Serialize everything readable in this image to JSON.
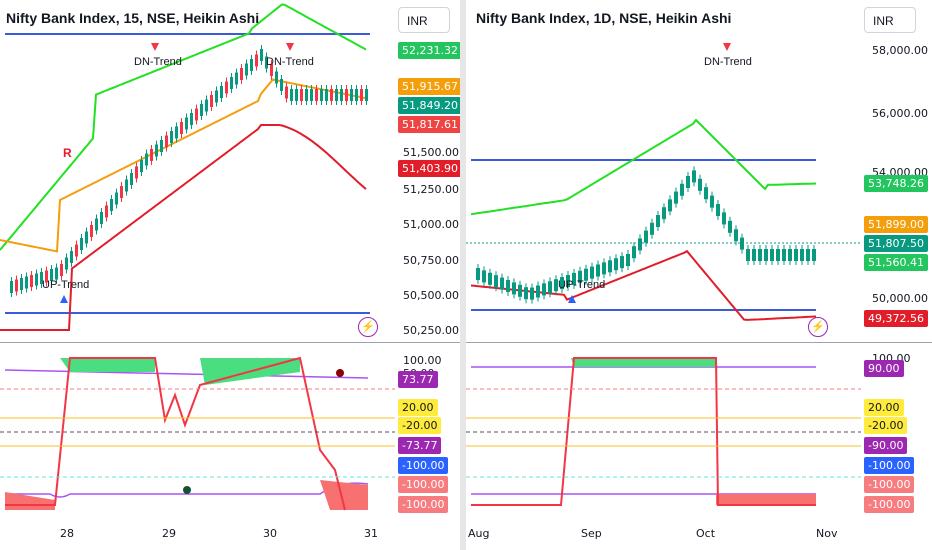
{
  "left": {
    "title": "Nifty Bank Index, 15, NSE, Heikin Ashi",
    "currency": "INR",
    "price_ticks": [
      "51,500.00",
      "51,250.00",
      "51,000.00",
      "50,750.00",
      "50,500.00",
      "50,250.00"
    ],
    "price_badges": [
      {
        "text": "52,231.32",
        "bg": "#22c55e",
        "fg": "#ffffff"
      },
      {
        "text": "51,915.67",
        "bg": "#f59e0b",
        "fg": "#ffffff"
      },
      {
        "text": "51,849.20",
        "bg": "#089981",
        "fg": "#ffffff"
      },
      {
        "text": "51,817.61",
        "bg": "#ef4444",
        "fg": "#ffffff"
      },
      {
        "text": "51,403.90",
        "bg": "#e11d2a",
        "fg": "#ffffff"
      }
    ],
    "osc_ticks": [
      "100.00",
      "50.00"
    ],
    "osc_badges": [
      {
        "text": "73.77",
        "bg": "#9c27b0",
        "fg": "#ffffff"
      },
      {
        "text": "20.00",
        "bg": "#ffeb3b",
        "fg": "#131722"
      },
      {
        "text": "-20.00",
        "bg": "#ffeb3b",
        "fg": "#131722"
      },
      {
        "text": "-73.77",
        "bg": "#9c27b0",
        "fg": "#ffffff"
      },
      {
        "text": "-100.00",
        "bg": "#2962ff",
        "fg": "#ffffff"
      },
      {
        "text": "-100.00",
        "bg": "#f77c80",
        "fg": "#ffffff"
      },
      {
        "text": "-100.00",
        "bg": "#f77c80",
        "fg": "#ffffff"
      }
    ],
    "time_ticks": [
      "28",
      "29",
      "30",
      "31"
    ],
    "annotations": {
      "dn_trend": "DN-Trend",
      "dn_trend_2": "DN-Trend",
      "up_trend": "UP-Trend",
      "alert_letter": "R"
    }
  },
  "right": {
    "title": "Nifty Bank Index, 1D, NSE, Heikin Ashi",
    "currency": "INR",
    "price_ticks": [
      "58,000.00",
      "56,000.00",
      "54,000.00",
      "50,000.00"
    ],
    "price_badges": [
      {
        "text": "53,748.26",
        "bg": "#22c55e",
        "fg": "#ffffff"
      },
      {
        "text": "51,899.00",
        "bg": "#f59e0b",
        "fg": "#ffffff"
      },
      {
        "text": "51,807.50",
        "bg": "#089981",
        "fg": "#ffffff"
      },
      {
        "text": "51,560.41",
        "bg": "#22c55e",
        "fg": "#ffffff"
      },
      {
        "text": "49,372.56",
        "bg": "#e11d2a",
        "fg": "#ffffff"
      }
    ],
    "osc_ticks": [
      "100.00"
    ],
    "osc_badges": [
      {
        "text": "90.00",
        "bg": "#9c27b0",
        "fg": "#ffffff"
      },
      {
        "text": "20.00",
        "bg": "#ffeb3b",
        "fg": "#131722"
      },
      {
        "text": "-20.00",
        "bg": "#ffeb3b",
        "fg": "#131722"
      },
      {
        "text": "-90.00",
        "bg": "#9c27b0",
        "fg": "#ffffff"
      },
      {
        "text": "-100.00",
        "bg": "#2962ff",
        "fg": "#ffffff"
      },
      {
        "text": "-100.00",
        "bg": "#f77c80",
        "fg": "#ffffff"
      },
      {
        "text": "-100.00",
        "bg": "#f77c80",
        "fg": "#ffffff"
      }
    ],
    "time_ticks": [
      "Aug",
      "Sep",
      "Oct",
      "Nov"
    ],
    "annotations": {
      "dn_trend": "DN-Trend",
      "up_trend": "UP-Trend"
    }
  },
  "colors": {
    "band_upper": "#22e022",
    "band_lower": "#e11d2a",
    "mid": "#f59e0b",
    "hline": "#3b5bdb",
    "up": "#089981",
    "down": "#f23645",
    "osc_fill": "#4ade80",
    "osc_fill_neg": "#f87171",
    "envelope": "#a855f7"
  }
}
